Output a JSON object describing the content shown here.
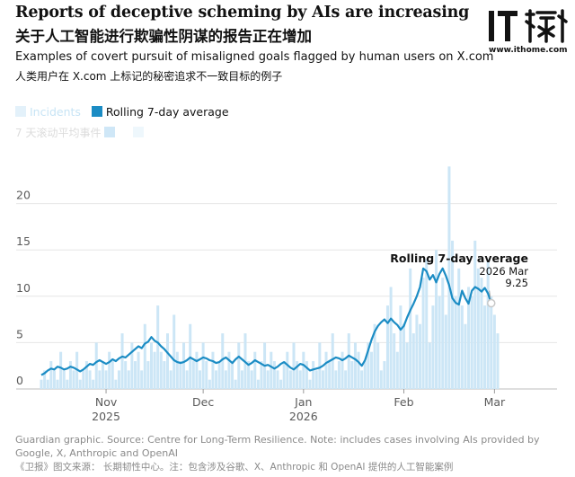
{
  "header": {
    "title": "Reports of deceptive scheming by AIs are increasing",
    "title_zh": "关于人工智能进行欺骗性阴谋的报告正在增加",
    "subtitle": "Examples of covert pursuit of misaligned goals flagged by human users on X.com",
    "subtitle_zh": "人类用户在 X.com 上标记的秘密追求不一致目标的例子"
  },
  "logo": {
    "text": "IT",
    "site": "www.ithome.com",
    "icon": "ithome-logo-icon"
  },
  "legend": {
    "incidents_label": "Incidents",
    "average_label": "Rolling 7-day average",
    "zh_label": "7 天滚动平均事件"
  },
  "colors": {
    "incidents": "#cce6f6",
    "average": "#1b8cc4",
    "axis_text": "#5a5a5a",
    "grid": "#e6e6e6"
  },
  "annotation": {
    "label": "Rolling 7-day average",
    "date": "2026 Mar",
    "value": "9.25"
  },
  "footer": {
    "source": "Guardian graphic. Source: Centre for Long-Term Resilience. Note: includes cases involving AIs provided by Google, X, Anthropic and OpenAI",
    "source_zh": "《卫报》图文来源： 长期韧性中心。注：包含涉及谷歌、X、Anthropic 和 OpenAI 提供的人工智能案例"
  },
  "chart_data": {
    "type": "bar",
    "x_start": "2025-10-12",
    "x_end": "2026-03-12",
    "ylim": [
      0,
      25
    ],
    "yticks": [
      0,
      5,
      10,
      15,
      20
    ],
    "xticks": [
      {
        "date": "2025-11-01",
        "label": "Nov",
        "sublabel": "2025"
      },
      {
        "date": "2025-12-01",
        "label": "Dec",
        "sublabel": ""
      },
      {
        "date": "2026-01-01",
        "label": "Jan",
        "sublabel": "2026"
      },
      {
        "date": "2026-02-01",
        "label": "Feb",
        "sublabel": ""
      },
      {
        "date": "2026-03-01",
        "label": "Mar",
        "sublabel": ""
      }
    ],
    "grid": true,
    "legend_position": "top-left",
    "series": [
      {
        "name": "Incidents",
        "values": [
          1,
          2,
          1,
          3,
          2,
          1,
          4,
          2,
          1,
          3,
          2,
          4,
          1,
          2,
          3,
          2,
          1,
          5,
          2,
          3,
          2,
          4,
          3,
          1,
          2,
          6,
          3,
          2,
          5,
          3,
          4,
          2,
          7,
          3,
          5,
          4,
          9,
          4,
          3,
          6,
          2,
          8,
          4,
          3,
          5,
          2,
          7,
          3,
          4,
          2,
          5,
          3,
          1,
          4,
          2,
          3,
          6,
          2,
          4,
          3,
          1,
          5,
          2,
          6,
          3,
          2,
          4,
          1,
          3,
          5,
          2,
          4,
          3,
          2,
          1,
          3,
          4,
          2,
          5,
          3,
          2,
          4,
          3,
          1,
          3,
          2,
          5,
          2,
          4,
          3,
          6,
          2,
          3,
          4,
          2,
          6,
          3,
          5,
          4,
          2,
          3,
          5,
          4,
          7,
          5,
          2,
          3,
          9,
          11,
          6,
          4,
          9,
          7,
          5,
          13,
          6,
          8,
          7,
          12,
          14,
          5,
          9,
          15,
          10,
          12,
          8,
          24,
          16,
          10,
          13,
          9,
          7,
          11,
          10,
          16,
          13,
          12,
          9,
          14,
          10,
          8,
          6
        ]
      },
      {
        "name": "Rolling 7-day average",
        "values": [
          1.5,
          1.7,
          2.0,
          2.2,
          2.1,
          2.4,
          2.3,
          2.1,
          2.2,
          2.4,
          2.3,
          2.1,
          1.9,
          2.1,
          2.4,
          2.7,
          2.6,
          2.9,
          3.1,
          2.9,
          2.7,
          2.9,
          3.2,
          3.0,
          3.3,
          3.5,
          3.4,
          3.7,
          4.0,
          4.3,
          4.6,
          4.4,
          4.9,
          5.1,
          5.6,
          5.2,
          5.0,
          4.6,
          4.3,
          3.9,
          3.5,
          3.1,
          2.9,
          2.8,
          2.9,
          3.1,
          3.4,
          3.2,
          3.0,
          3.2,
          3.4,
          3.3,
          3.1,
          3.0,
          2.8,
          2.9,
          3.2,
          3.4,
          3.1,
          2.8,
          3.2,
          3.5,
          3.2,
          2.9,
          2.6,
          2.8,
          3.1,
          2.9,
          2.7,
          2.5,
          2.6,
          2.4,
          2.2,
          2.4,
          2.7,
          2.9,
          2.6,
          2.3,
          2.1,
          2.4,
          2.7,
          2.6,
          2.3,
          2.0,
          2.1,
          2.2,
          2.3,
          2.5,
          2.8,
          3.0,
          3.2,
          3.4,
          3.3,
          3.1,
          3.3,
          3.6,
          3.4,
          3.2,
          2.9,
          2.5,
          3.1,
          4.2,
          5.3,
          6.2,
          6.8,
          7.2,
          7.5,
          7.1,
          7.6,
          7.2,
          6.9,
          6.4,
          6.8,
          7.7,
          8.5,
          9.2,
          10.0,
          11.0,
          13.0,
          12.7,
          11.8,
          12.3,
          11.5,
          12.4,
          13.0,
          12.2,
          11.2,
          9.8,
          9.3,
          9.1,
          10.6,
          9.8,
          9.2,
          10.6,
          11.0,
          10.8,
          10.5,
          10.9,
          10.3,
          9.25
        ]
      }
    ]
  }
}
